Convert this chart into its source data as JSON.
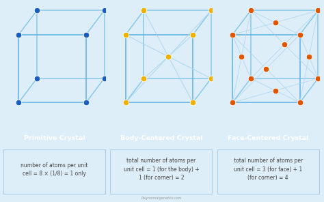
{
  "bg_color": "#ddeef8",
  "panel_bg": "#ffffff",
  "title_bg": "#2fa8d5",
  "title_color": "#ffffff",
  "edge_color_strong": "#5ab0e0",
  "edge_color_mid": "#88c8e8",
  "edge_color_light": "#b0d8ef",
  "node_blue": "#1a5cbf",
  "node_gold": "#f0b000",
  "node_orange": "#e05500",
  "text_color": "#444444",
  "sep_color": "#aad0e8",
  "watermark": "Polynomialgenetics.com",
  "titles": [
    "Primitive Crystal",
    "Body-Centered Crystal",
    "Face-Centered Crystal"
  ],
  "desc": [
    "number of atoms per unit\ncell = 8 × (1/8) = 1 only",
    "total number of atoms per\nunit cell = 1 (for the body) +\n1 (for corner) = 2",
    "total number of atoms per\nunit cell = 3 (for face) + 1\n(for corner) = 4"
  ]
}
